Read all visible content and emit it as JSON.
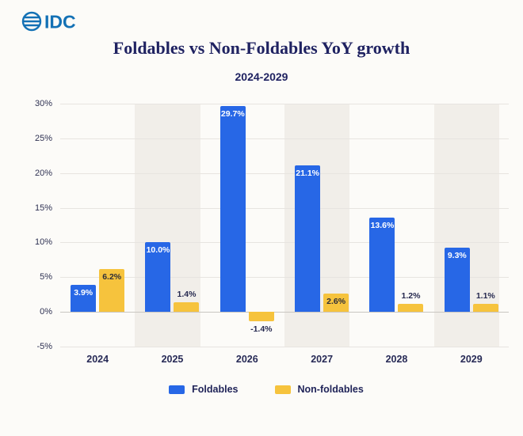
{
  "logo": {
    "text": "IDC",
    "color": "#1371b5"
  },
  "header": {
    "title": "Foldables vs Non-Foldables YoY growth",
    "subtitle": "2024-2029"
  },
  "chart_data": {
    "type": "bar",
    "title": "Foldables vs Non-Foldables YoY growth",
    "subtitle": "2024-2029",
    "categories": [
      "2024",
      "2025",
      "2026",
      "2027",
      "2028",
      "2029"
    ],
    "series": [
      {
        "name": "Foldables",
        "color": "#2767e6",
        "values": [
          3.9,
          10.0,
          29.7,
          21.1,
          13.6,
          9.3
        ],
        "labels": [
          "3.9%",
          "10.0%",
          "29.7%",
          "21.1%",
          "13.6%",
          "9.3%"
        ]
      },
      {
        "name": "Non-foldables",
        "color": "#f6c33d",
        "values": [
          6.2,
          1.4,
          -1.4,
          2.6,
          1.2,
          1.1
        ],
        "labels": [
          "6.2%",
          "1.4%",
          "-1.4%",
          "2.6%",
          "1.2%",
          "1.1%"
        ]
      }
    ],
    "ylim": [
      -5,
      30
    ],
    "yticks": [
      -5,
      0,
      5,
      10,
      15,
      20,
      25,
      30
    ],
    "ytick_labels": [
      "-5%",
      "0%",
      "5%",
      "10%",
      "15%",
      "20%",
      "25%",
      "30%"
    ],
    "grid": true,
    "legend_position": "bottom",
    "shaded_column_indexes": [
      1,
      3,
      5
    ]
  },
  "legend": {
    "items": [
      {
        "label": "Foldables",
        "color": "#2767e6"
      },
      {
        "label": "Non-foldables",
        "color": "#f6c33d"
      }
    ]
  }
}
